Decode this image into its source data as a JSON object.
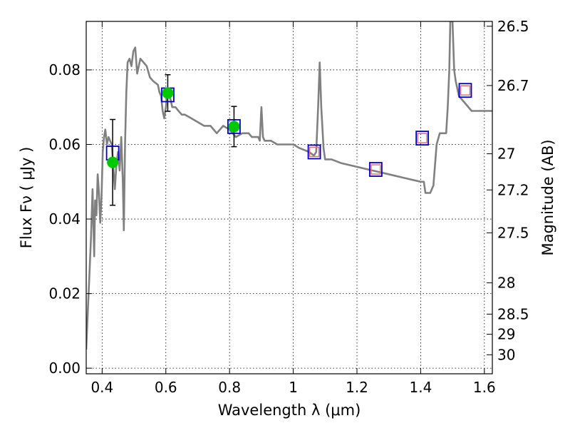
{
  "chart_data": {
    "type": "line",
    "title": "",
    "xlabel": "Wavelength  λ (μm)",
    "ylabel": "Flux  Fν  ( μJy )",
    "ylabel_right": "Magnitude (AB)",
    "xlim": [
      0.35,
      1.625
    ],
    "ylim": [
      -0.0015,
      0.093
    ],
    "grid": true,
    "x_ticks": [
      0.4,
      0.6,
      0.8,
      1.0,
      1.2,
      1.4,
      1.6
    ],
    "x_tick_labels": [
      "0.4",
      "0.6",
      "0.8",
      "1",
      "1.2",
      "1.4",
      "1.6"
    ],
    "y_ticks": [
      0.0,
      0.02,
      0.04,
      0.06,
      0.08
    ],
    "y_tick_labels": [
      "0.00",
      "0.02",
      "0.04",
      "0.06",
      "0.08"
    ],
    "right_ticks": [
      {
        "flux": 0.0917,
        "label": "26.5"
      },
      {
        "flux": 0.0758,
        "label": "26.7"
      },
      {
        "flux": 0.0575,
        "label": "27"
      },
      {
        "flux": 0.0478,
        "label": "27.2"
      },
      {
        "flux": 0.0363,
        "label": "27.5"
      },
      {
        "flux": 0.0229,
        "label": "28"
      },
      {
        "flux": 0.0145,
        "label": "28.5"
      },
      {
        "flux": 0.0091,
        "label": "29"
      },
      {
        "flux": 0.0036,
        "label": "30"
      }
    ],
    "colors": {
      "model": "#808080",
      "observed": "#00c800",
      "model_box": "#0000cc",
      "alt_box": "#e07070",
      "errorbar": "#000000"
    },
    "series": [
      {
        "type": "line",
        "x": [
          0.35,
          0.355,
          0.36,
          0.365,
          0.37,
          0.375,
          0.378,
          0.382,
          0.386,
          0.39,
          0.394,
          0.398,
          0.402,
          0.406,
          0.41,
          0.415,
          0.42,
          0.43,
          0.44,
          0.445,
          0.45,
          0.455,
          0.46,
          0.465,
          0.468,
          0.472,
          0.476,
          0.48,
          0.486,
          0.492,
          0.498,
          0.504,
          0.51,
          0.52,
          0.53,
          0.54,
          0.55,
          0.56,
          0.575,
          0.58,
          0.585,
          0.59,
          0.595,
          0.6,
          0.605,
          0.61,
          0.615,
          0.62,
          0.63,
          0.64,
          0.65,
          0.66,
          0.68,
          0.7,
          0.72,
          0.74,
          0.75,
          0.76,
          0.78,
          0.8,
          0.82,
          0.84,
          0.86,
          0.87,
          0.88,
          0.89,
          0.895,
          0.9,
          0.905,
          0.91,
          0.93,
          0.95,
          0.97,
          1.0,
          1.02,
          1.05,
          1.065,
          1.072,
          1.078,
          1.083,
          1.088,
          1.095,
          1.1,
          1.12,
          1.15,
          1.2,
          1.25,
          1.3,
          1.35,
          1.4,
          1.41,
          1.415,
          1.43,
          1.44,
          1.45,
          1.46,
          1.48,
          1.485,
          1.49,
          1.493,
          1.496,
          1.5,
          1.505,
          1.51,
          1.52,
          1.54,
          1.56,
          1.58,
          1.6,
          1.625
        ],
        "y": [
          0.005,
          0.015,
          0.025,
          0.035,
          0.048,
          0.03,
          0.045,
          0.041,
          0.052,
          0.047,
          0.039,
          0.046,
          0.058,
          0.062,
          0.064,
          0.06,
          0.062,
          0.06,
          0.048,
          0.055,
          0.058,
          0.053,
          0.062,
          0.05,
          0.037,
          0.06,
          0.074,
          0.082,
          0.083,
          0.081,
          0.085,
          0.086,
          0.079,
          0.083,
          0.082,
          0.081,
          0.078,
          0.077,
          0.076,
          0.074,
          0.073,
          0.069,
          0.067,
          0.07,
          0.074,
          0.073,
          0.072,
          0.07,
          0.07,
          0.069,
          0.068,
          0.068,
          0.067,
          0.066,
          0.065,
          0.065,
          0.064,
          0.063,
          0.065,
          0.064,
          0.062,
          0.063,
          0.063,
          0.062,
          0.062,
          0.062,
          0.061,
          0.07,
          0.062,
          0.061,
          0.061,
          0.06,
          0.06,
          0.06,
          0.059,
          0.058,
          0.057,
          0.058,
          0.07,
          0.082,
          0.07,
          0.059,
          0.056,
          0.056,
          0.055,
          0.054,
          0.053,
          0.052,
          0.051,
          0.05,
          0.05,
          0.047,
          0.047,
          0.049,
          0.06,
          0.063,
          0.063,
          0.07,
          0.08,
          0.093,
          0.093,
          0.093,
          0.08,
          0.077,
          0.073,
          0.071,
          0.069,
          0.069,
          0.069,
          0.069
        ]
      },
      {
        "type": "scatter",
        "x": [
          0.433,
          0.606,
          0.814
        ],
        "y": [
          0.0552,
          0.0738,
          0.0648
        ],
        "yerr": [
          0.0115,
          0.0049,
          0.0054
        ]
      },
      {
        "type": "scatter",
        "x": [
          0.433,
          0.606,
          0.814,
          1.066,
          1.259,
          1.405,
          1.54
        ],
        "y": [
          0.0577,
          0.0733,
          0.0648,
          0.058,
          0.0533,
          0.0617,
          0.0745
        ]
      },
      {
        "type": "scatter",
        "x": [
          1.066,
          1.259,
          1.405,
          1.54
        ],
        "y": [
          0.058,
          0.0533,
          0.0617,
          0.0745
        ]
      }
    ]
  }
}
